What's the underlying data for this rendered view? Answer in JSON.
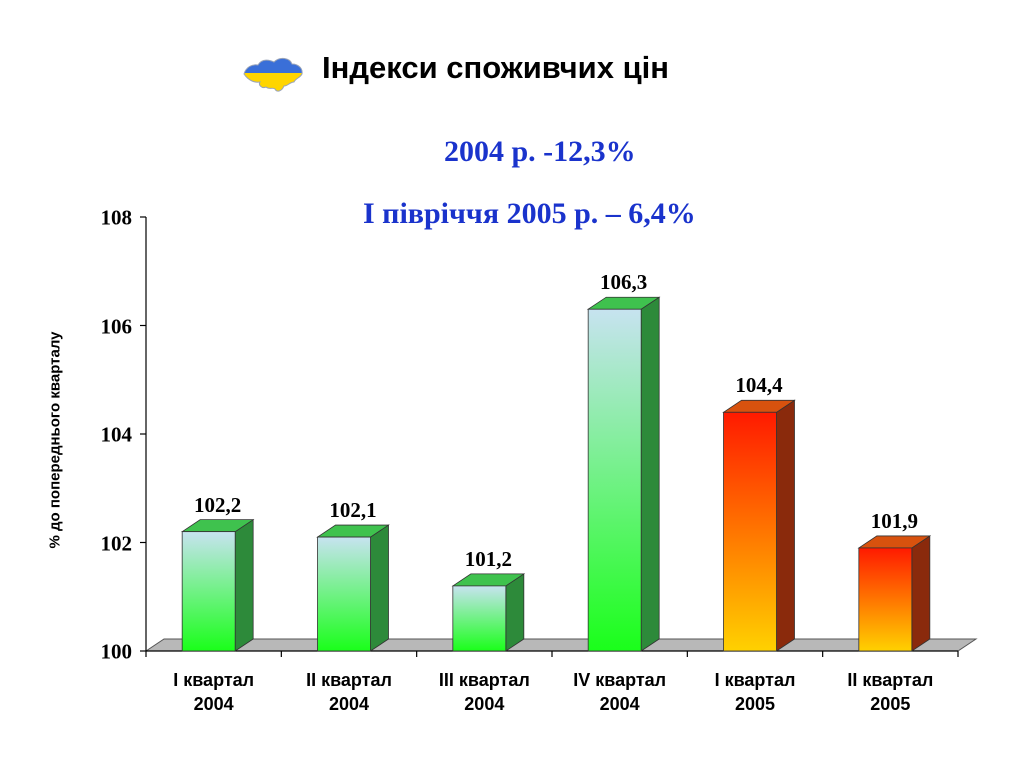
{
  "header": {
    "title": "Індекси споживчих цін",
    "icon": "ukraine-map-icon"
  },
  "colors": {
    "subtitle": "#1a33cc",
    "green_top": "#c7e3f0",
    "green_bottom": "#1aff1a",
    "orange_top": "#ff1a00",
    "orange_bottom": "#ffd100",
    "floor": "#b8b8b8"
  },
  "chart_data": {
    "type": "bar",
    "style": "3d",
    "subtitles": [
      "2004 р. -12,3%",
      "І півріччя 2005 р. – 6,4%"
    ],
    "ylabel": "% до попереднього кварталу",
    "xlabel": "",
    "ylim": [
      100,
      108
    ],
    "yticks": [
      "100",
      "102",
      "104",
      "106",
      "108"
    ],
    "categories": [
      "I квартал\n2004",
      "II квартал\n2004",
      "III квартал\n2004",
      "IV квартал\n2004",
      "I квартал\n2005",
      "II квартал\n2005"
    ],
    "values": [
      102.2,
      102.1,
      101.2,
      106.3,
      104.4,
      101.9
    ],
    "value_labels": [
      "102,2",
      "102,1",
      "101,2",
      "106,3",
      "104,4",
      "101,9"
    ],
    "bar_color_groups": [
      "green",
      "green",
      "green",
      "green",
      "orange",
      "orange"
    ],
    "grid": false,
    "legend": "none"
  }
}
